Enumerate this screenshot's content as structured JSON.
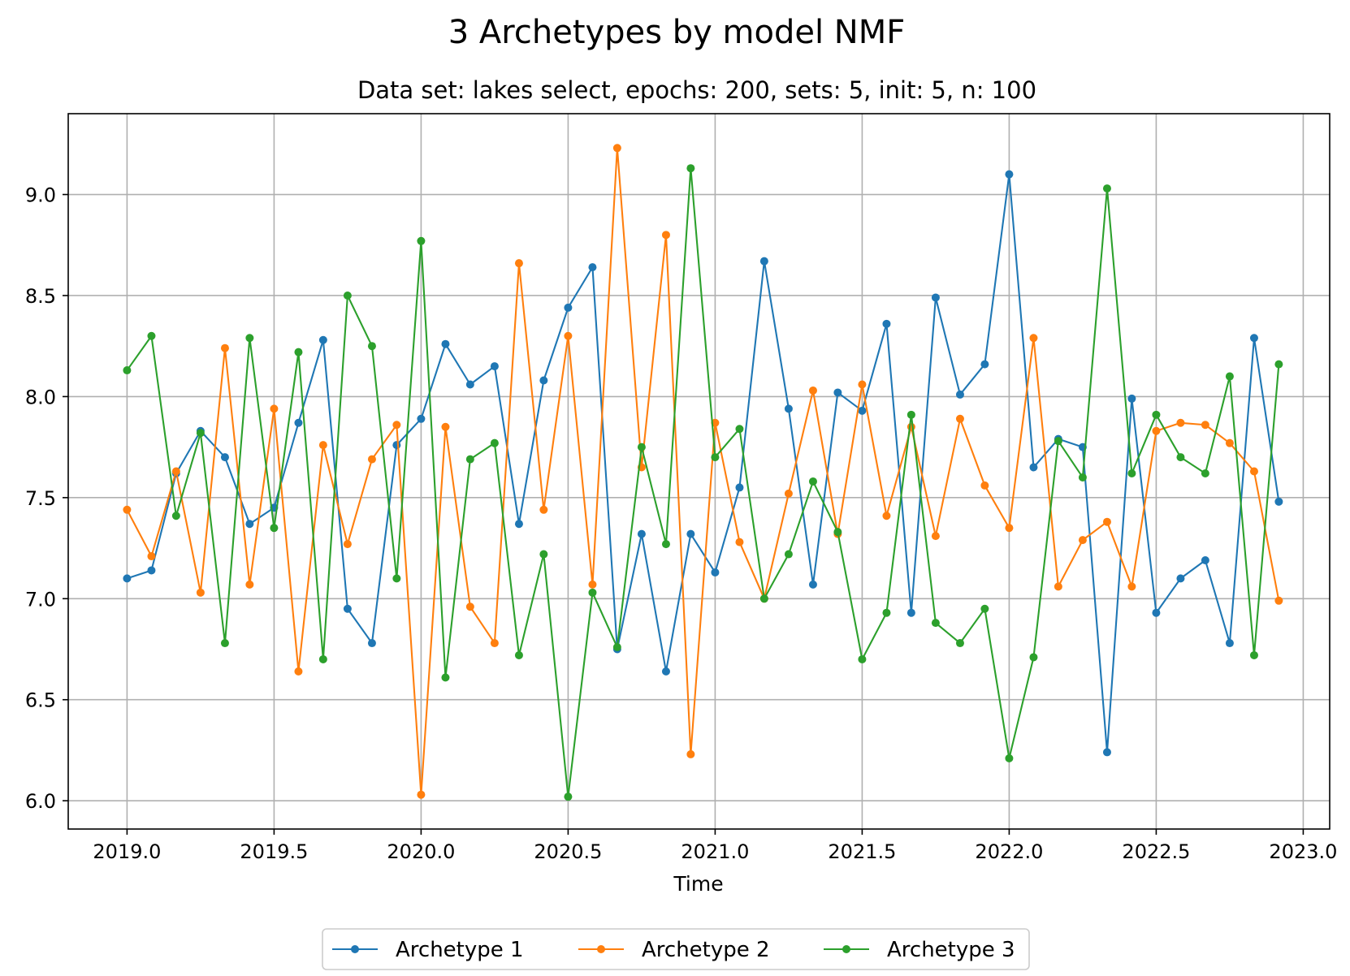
{
  "chart_data": {
    "type": "line",
    "title": "3 Archetypes by model NMF",
    "subtitle": "Data set: lakes select, epochs: 200, sets: 5, init: 5, n: 100",
    "xlabel": "Time",
    "ylabel": "",
    "xlim": [
      2018.8,
      2023.09
    ],
    "ylim": [
      5.86,
      9.4
    ],
    "xticks": [
      2019.0,
      2019.5,
      2020.0,
      2020.5,
      2021.0,
      2021.5,
      2022.0,
      2022.5,
      2023.0
    ],
    "xtick_labels": [
      "2019.0",
      "2019.5",
      "2020.0",
      "2020.5",
      "2021.0",
      "2021.5",
      "2022.0",
      "2022.5",
      "2023.0"
    ],
    "yticks": [
      6.0,
      6.5,
      7.0,
      7.5,
      8.0,
      8.5,
      9.0
    ],
    "ytick_labels": [
      "6.0",
      "6.5",
      "7.0",
      "7.5",
      "8.0",
      "8.5",
      "9.0"
    ],
    "grid": true,
    "legend_position": "bottom-center",
    "x": [
      2019.0,
      2019.083,
      2019.167,
      2019.25,
      2019.333,
      2019.417,
      2019.5,
      2019.583,
      2019.667,
      2019.75,
      2019.833,
      2019.917,
      2020.0,
      2020.083,
      2020.167,
      2020.25,
      2020.333,
      2020.417,
      2020.5,
      2020.583,
      2020.667,
      2020.75,
      2020.833,
      2020.917,
      2021.0,
      2021.083,
      2021.167,
      2021.25,
      2021.333,
      2021.417,
      2021.5,
      2021.583,
      2021.667,
      2021.75,
      2021.833,
      2021.917,
      2022.0,
      2022.083,
      2022.167,
      2022.25,
      2022.333,
      2022.417,
      2022.5,
      2022.583,
      2022.667,
      2022.75,
      2022.833,
      2022.917
    ],
    "series": [
      {
        "name": "Archetype 1",
        "color": "#1f77b4",
        "values": [
          7.1,
          7.14,
          7.62,
          7.83,
          7.7,
          7.37,
          7.45,
          7.87,
          8.28,
          6.95,
          6.78,
          7.76,
          7.89,
          8.26,
          8.06,
          8.15,
          7.37,
          8.08,
          8.44,
          8.64,
          6.75,
          7.32,
          6.64,
          7.32,
          7.13,
          7.55,
          8.67,
          7.94,
          7.07,
          8.02,
          7.93,
          8.36,
          6.93,
          8.49,
          8.01,
          8.16,
          9.1,
          7.65,
          7.79,
          7.75,
          6.24,
          7.99,
          6.93,
          7.1,
          7.19,
          6.78,
          8.29,
          7.48
        ]
      },
      {
        "name": "Archetype 2",
        "color": "#ff7f0e",
        "values": [
          7.44,
          7.21,
          7.63,
          7.03,
          8.24,
          7.07,
          7.94,
          6.64,
          7.76,
          7.27,
          7.69,
          7.86,
          6.03,
          7.85,
          6.96,
          6.78,
          8.66,
          7.44,
          8.3,
          7.07,
          9.23,
          7.65,
          8.8,
          6.23,
          7.87,
          7.28,
          7.0,
          7.52,
          8.03,
          7.32,
          8.06,
          7.41,
          7.85,
          7.31,
          7.89,
          7.56,
          7.35,
          8.29,
          7.06,
          7.29,
          7.38,
          7.06,
          7.83,
          7.87,
          7.86,
          7.77,
          7.63,
          6.99
        ]
      },
      {
        "name": "Archetype 3",
        "color": "#2ca02c",
        "values": [
          8.13,
          8.3,
          7.41,
          7.82,
          6.78,
          8.29,
          7.35,
          8.22,
          6.7,
          8.5,
          8.25,
          7.1,
          8.77,
          6.61,
          7.69,
          7.77,
          6.72,
          7.22,
          6.02,
          7.03,
          6.76,
          7.75,
          7.27,
          9.13,
          7.7,
          7.84,
          7.0,
          7.22,
          7.58,
          7.33,
          6.7,
          6.93,
          7.91,
          6.88,
          6.78,
          6.95,
          6.21,
          6.71,
          7.78,
          7.6,
          9.03,
          7.62,
          7.91,
          7.7,
          7.62,
          8.1,
          6.72,
          8.16
        ]
      }
    ]
  }
}
